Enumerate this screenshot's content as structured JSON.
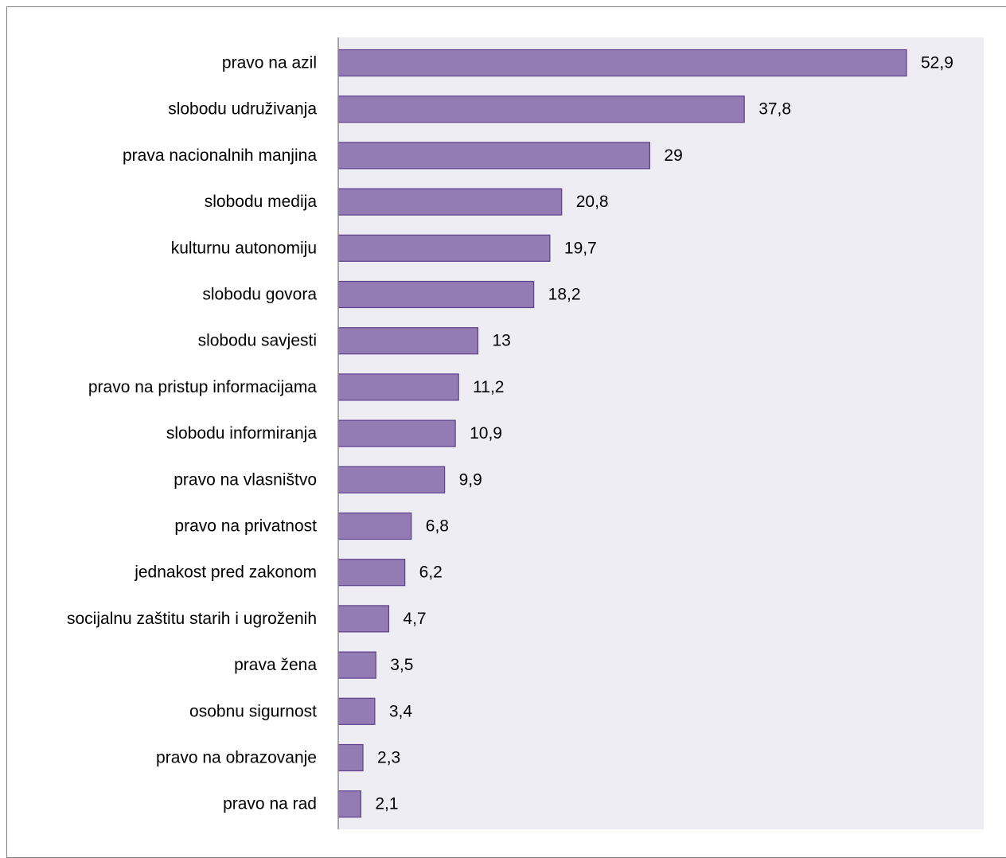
{
  "chart_data": {
    "type": "bar",
    "orientation": "horizontal",
    "title": "",
    "xlabel": "",
    "ylabel": "",
    "grid": false,
    "legend": "none",
    "xlim": [
      0,
      58
    ],
    "categories": [
      "pravo na azil",
      "slobodu udruživanja",
      "prava nacionalnih manjina",
      "slobodu medija",
      "kulturnu autonomiju",
      "slobodu govora",
      "slobodu savjesti",
      "pravo na pristup informacijama",
      "slobodu informiranja",
      "pravo na vlasništvo",
      "pravo na privatnost",
      "jednakost pred zakonom",
      "socijalnu zaštitu starih i ugroženih",
      "prava žena",
      "osobnu sigurnost",
      "pravo na obrazovanje",
      "pravo na rad"
    ],
    "values": [
      52.9,
      37.8,
      29,
      20.8,
      19.7,
      18.2,
      13,
      11.2,
      10.9,
      9.9,
      6.8,
      6.2,
      4.7,
      3.5,
      3.4,
      2.3,
      2.1
    ],
    "value_labels": [
      "52,9",
      "37,8",
      "29",
      "20,8",
      "19,7",
      "18,2",
      "13",
      "11,2",
      "10,9",
      "9,9",
      "6,8",
      "6,2",
      "4,7",
      "3,5",
      "3,4",
      "2,3",
      "2,1"
    ],
    "colors": {
      "bar_fill": "#937cb4",
      "bar_stroke": "#5e3f8c",
      "plot_background": "#efedf4",
      "axis": "#8c8c8c"
    }
  }
}
